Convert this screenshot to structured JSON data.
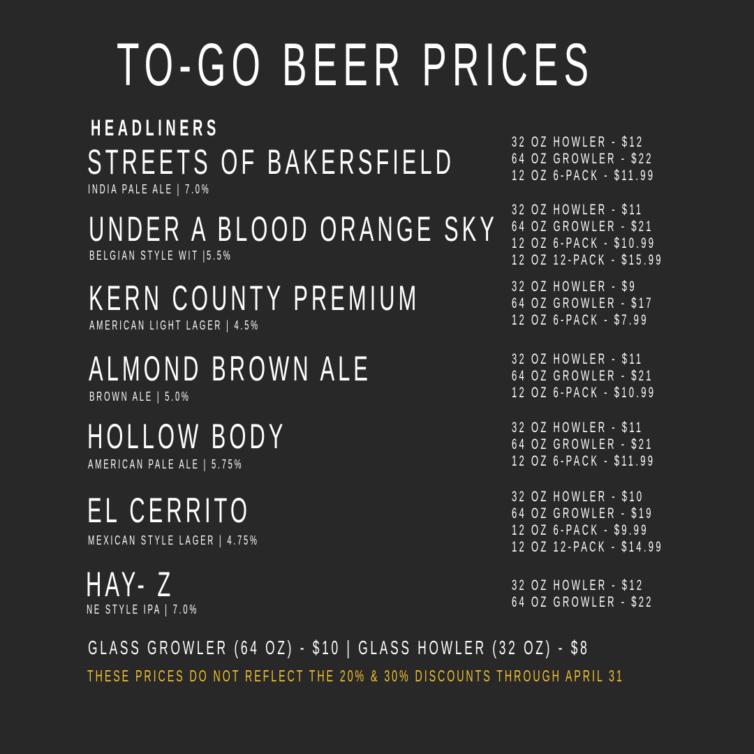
{
  "title": "TO-GO BEER PRICES",
  "section": "HEADLINERS",
  "beers": [
    {
      "name": "STREETS OF BAKERSFIELD",
      "style": "INDIA PALE ALE | 7.0%",
      "prices": [
        "32 OZ HOWLER - $12",
        "64 OZ GROWLER - $22",
        "12 OZ 6-PACK - $11.99"
      ]
    },
    {
      "name": "UNDER A BLOOD ORANGE SKY",
      "style": "BELGIAN STYLE WIT |5.5%",
      "prices": [
        "32 OZ HOWLER - $11",
        "64 OZ GROWLER - $21",
        "12 OZ 6-PACK - $10.99",
        "12 OZ 12-PACK - $15.99"
      ]
    },
    {
      "name": "KERN COUNTY PREMIUM",
      "style": "AMERICAN LIGHT LAGER | 4.5%",
      "prices": [
        "32 OZ HOWLER - $9",
        "64 OZ GROWLER - $17",
        "12 OZ 6-PACK - $7.99"
      ]
    },
    {
      "name": "ALMOND BROWN ALE",
      "style": "BROWN ALE | 5.0%",
      "prices": [
        "32 OZ HOWLER - $11",
        "64 OZ GROWLER - $21",
        "12 OZ 6-PACK - $10.99"
      ]
    },
    {
      "name": "HOLLOW BODY",
      "style": "AMERICAN PALE ALE | 5.75%",
      "prices": [
        "32 OZ HOWLER - $11",
        "64 OZ GROWLER - $21",
        "12 OZ 6-PACK - $11.99"
      ]
    },
    {
      "name": "EL CERRITO",
      "style": "MEXICAN STYLE LAGER | 4.75%",
      "prices": [
        "32 OZ HOWLER - $10",
        "64 OZ GROWLER - $19",
        "12 OZ 6-PACK - $9.99",
        "12 OZ 12-PACK - $14.99"
      ]
    },
    {
      "name": "HAY- Z",
      "style": "NE STYLE IPA | 7.0%",
      "prices": [
        "32 OZ HOWLER - $12",
        "64 OZ GROWLER - $22"
      ]
    }
  ],
  "glassware": "GLASS GROWLER (64 OZ) - $10 | GLASS HOWLER (32 OZ) - $8",
  "disclaimer": "THESE PRICES DO NOT REFLECT THE 20% & 30% DISCOUNTS THROUGH APRIL 31",
  "colors": {
    "background": "#282828",
    "text": "#ffffff",
    "accent": "#f2c12e"
  }
}
